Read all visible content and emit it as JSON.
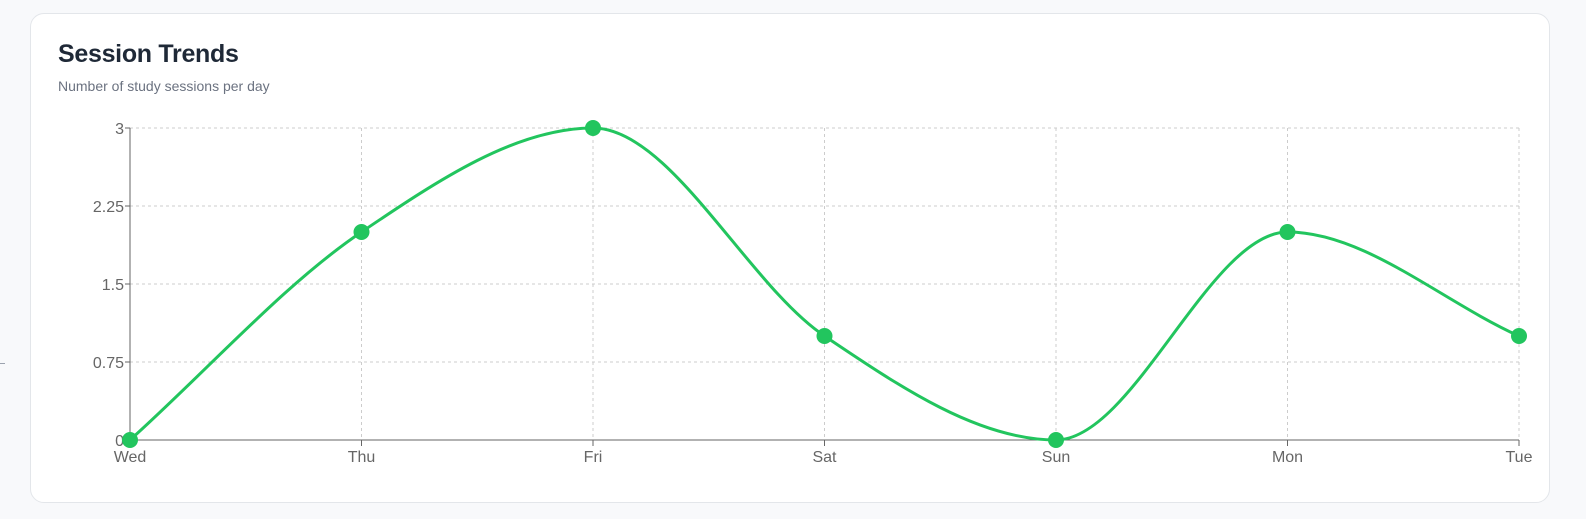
{
  "card": {
    "title": "Session Trends",
    "subtitle": "Number of study sessions per day"
  },
  "chart_data": {
    "type": "line",
    "title": "Session Trends",
    "subtitle": "Number of study sessions per day",
    "categories": [
      "Wed",
      "Thu",
      "Fri",
      "Sat",
      "Sun",
      "Mon",
      "Tue"
    ],
    "series": [
      {
        "values": [
          0,
          2,
          3,
          1,
          0,
          2,
          1
        ]
      }
    ],
    "yticks": [
      "0",
      "0.75",
      "1.5",
      "2.25",
      "3"
    ],
    "ylim": [
      0,
      3
    ],
    "grid": true,
    "legend": "none",
    "colors": {
      "line": "#22c55e",
      "grid": "#cccccc",
      "axis": "#666666"
    }
  }
}
